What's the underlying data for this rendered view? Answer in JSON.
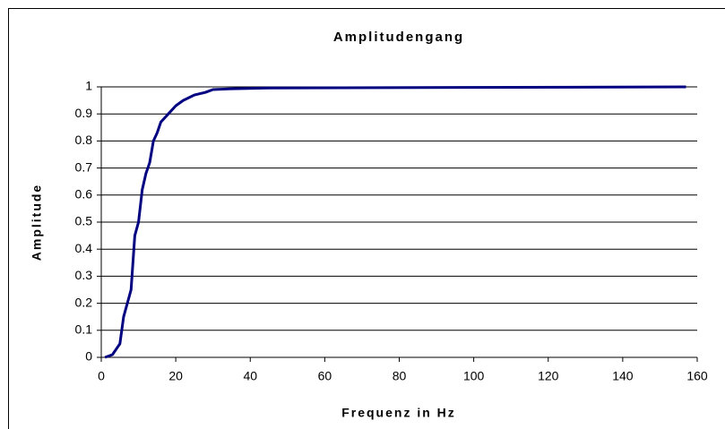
{
  "chart_data": {
    "type": "line",
    "title": "Amplitudengang",
    "x_label": "Frequenz in Hz",
    "y_label": "Amplitude",
    "x": [
      1,
      3,
      5,
      6,
      7,
      8,
      9,
      10,
      11,
      12,
      13,
      14,
      15,
      16,
      18,
      20,
      22,
      25,
      28,
      30,
      35,
      45,
      157
    ],
    "series": [
      {
        "name": "Amplitude",
        "color": "#000080",
        "values": [
          0,
          0.01,
          0.05,
          0.15,
          0.2,
          0.25,
          0.45,
          0.5,
          0.62,
          0.68,
          0.72,
          0.8,
          0.83,
          0.87,
          0.9,
          0.93,
          0.95,
          0.97,
          0.98,
          0.99,
          0.993,
          0.996,
          1
        ]
      }
    ],
    "xlim": [
      0,
      160
    ],
    "xticks": [
      0,
      20,
      40,
      60,
      80,
      100,
      120,
      140,
      160
    ],
    "ylim": [
      0,
      1
    ],
    "yticks": [
      0,
      0.1,
      0.2,
      0.3,
      0.4,
      0.5,
      0.6,
      0.7,
      0.8,
      0.9,
      1
    ],
    "grid": true
  }
}
